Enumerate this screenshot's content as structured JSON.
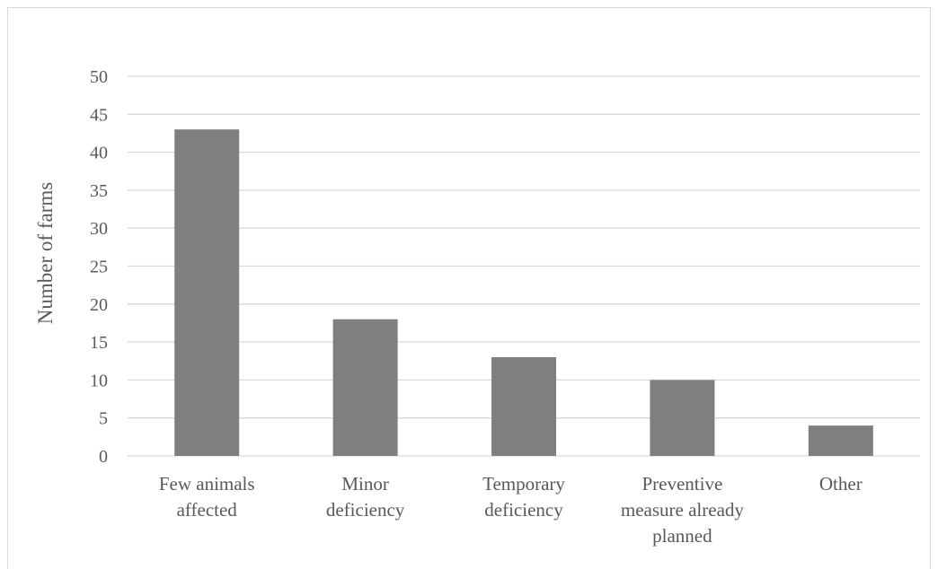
{
  "chart_data": {
    "type": "bar",
    "title": "",
    "xlabel": "",
    "ylabel": "Number of farms",
    "ylim": [
      0,
      50
    ],
    "yticks": [
      "0",
      "5",
      "10",
      "15",
      "20",
      "25",
      "30",
      "35",
      "40",
      "45",
      "50"
    ],
    "grid": true,
    "bar_color": "#7f7f7f",
    "categories": [
      [
        "Few animals",
        "affected"
      ],
      [
        "Minor",
        "deficiency"
      ],
      [
        "Temporary",
        "deficiency"
      ],
      [
        "Preventive",
        "measure already",
        "planned"
      ],
      [
        "Other"
      ]
    ],
    "values": [
      43,
      18,
      13,
      10,
      4
    ]
  }
}
